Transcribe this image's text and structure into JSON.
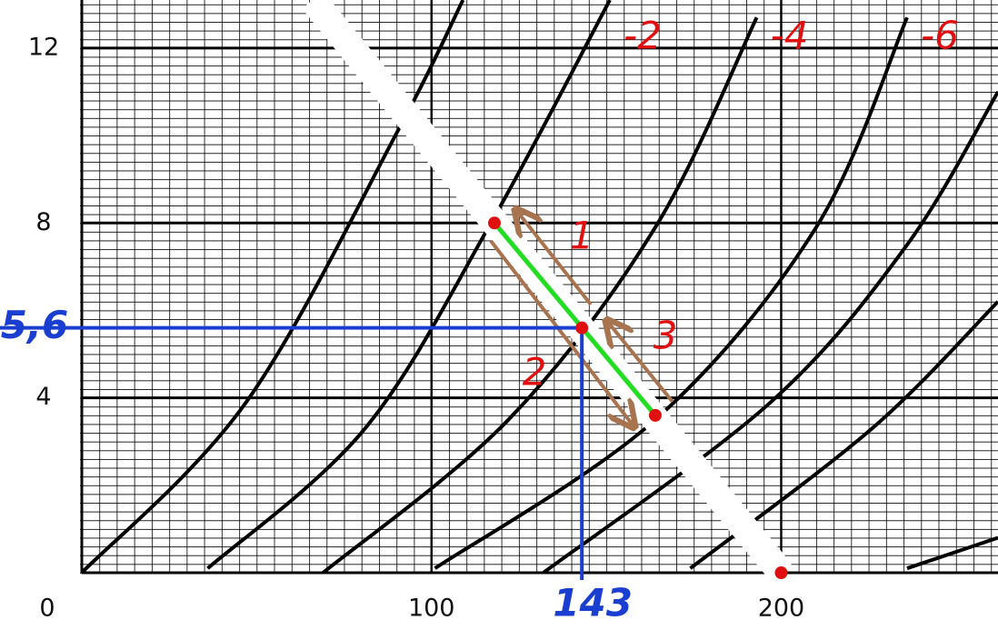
{
  "chart_data": {
    "type": "line",
    "xlim": [
      0,
      262
    ],
    "ylim": [
      0,
      13.1
    ],
    "xticks": [
      0,
      100,
      200
    ],
    "yticks": [
      4,
      8,
      12
    ],
    "grid": true,
    "minor_grid": {
      "x": 5,
      "y": 0.2
    },
    "curve_color": "#000000",
    "series": [
      {
        "x": [
          0,
          47,
          91,
          109
        ],
        "y": [
          0,
          3.9,
          10.2,
          13.1
        ]
      },
      {
        "name": "-2",
        "x": [
          36,
          81,
          117,
          151
        ],
        "y": [
          0.1,
          3.3,
          8,
          13.1
        ]
      },
      {
        "name": "-4",
        "x": [
          69,
          122,
          164,
          193
        ],
        "y": [
          0,
          3.5,
          7.9,
          12.7
        ]
      },
      {
        "name": "-6",
        "x": [
          101,
          164,
          210,
          236
        ],
        "y": [
          0.1,
          3.5,
          7.9,
          12.7
        ]
      },
      {
        "x": [
          132,
          197,
          236,
          262
        ],
        "y": [
          0,
          3.9,
          7.5,
          11
        ]
      },
      {
        "x": [
          174,
          226,
          262
        ],
        "y": [
          0.1,
          3.3,
          6.2
        ]
      },
      {
        "x": [
          236,
          262
        ],
        "y": [
          0.1,
          0.8
        ]
      }
    ],
    "load_line": {
      "x": [
        66,
        200
      ],
      "y": [
        13.1,
        0
      ],
      "color": "#ffffff"
    },
    "segment": {
      "x": [
        118,
        164
      ],
      "y": [
        8,
        3.6
      ],
      "color": "#22dd22"
    },
    "operating_point": {
      "x": 143,
      "y": 5.6,
      "y_label": "5,6",
      "color": "#1a3fd0"
    },
    "point_color": "#e01010",
    "label_color": "#e01010",
    "annotations": [
      "1",
      "2",
      "3"
    ]
  }
}
